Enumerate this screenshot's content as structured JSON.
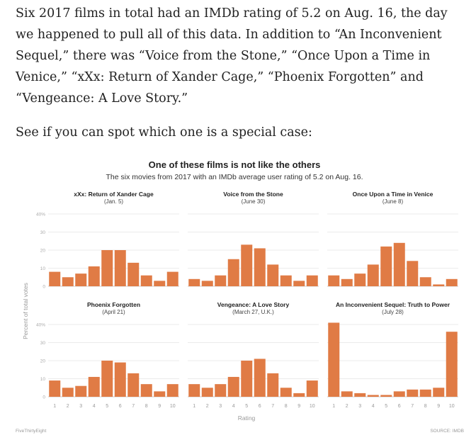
{
  "article": {
    "paragraph_1": "Six 2017 films in total had an IMDb rating of 5.2 on Aug. 16, the day we happened to pull all of this data. In addition to “An Inconvenient Sequel,” there was “Voice from the Stone,” “Once Upon a Time in Venice,” “xXx: Return of Xander Cage,” “Phoenix Forgotten” and “Vengeance: A Love Story.”",
    "paragraph_2": "See if you can spot which one is a special case:"
  },
  "chart_data": {
    "type": "bar",
    "title": "One of these films is not like the others",
    "subtitle": "The six movies from 2017 with an IMDb average user rating of 5.2 on Aug. 16.",
    "xlabel": "Rating",
    "ylabel": "Percent of total votes",
    "categories": [
      "1",
      "2",
      "3",
      "4",
      "5",
      "6",
      "7",
      "8",
      "9",
      "10"
    ],
    "yticks": [
      "40%",
      "30",
      "20",
      "10",
      "0"
    ],
    "ylim": [
      0,
      40
    ],
    "grid": true,
    "bar_color": "#e07b45",
    "footer_left": "FiveThirtyEight",
    "footer_right": "SOURCE: IMDB",
    "series": [
      {
        "name": "xXx: Return of Xander Cage",
        "date": "(Jan. 5)",
        "values": [
          8,
          5,
          7,
          11,
          20,
          20,
          13,
          6,
          3,
          8
        ]
      },
      {
        "name": "Voice from the Stone",
        "date": "(June 30)",
        "values": [
          4,
          3,
          6,
          15,
          23,
          21,
          12,
          6,
          3,
          6
        ]
      },
      {
        "name": "Once Upon a Time in Venice",
        "date": "(June 8)",
        "values": [
          6,
          4,
          7,
          12,
          22,
          24,
          14,
          5,
          1,
          4
        ]
      },
      {
        "name": "Phoenix Forgotten",
        "date": "(April 21)",
        "values": [
          9,
          5,
          6,
          11,
          20,
          19,
          13,
          7,
          3,
          7
        ]
      },
      {
        "name": "Vengeance: A Love Story",
        "date": "(March 27, U.K.)",
        "values": [
          7,
          5,
          7,
          11,
          20,
          21,
          13,
          5,
          2,
          9
        ]
      },
      {
        "name": "An Inconvenient Sequel: Truth to Power",
        "date": "(July 28)",
        "values": [
          41,
          3,
          2,
          1,
          1,
          3,
          4,
          4,
          5,
          36
        ]
      }
    ]
  }
}
